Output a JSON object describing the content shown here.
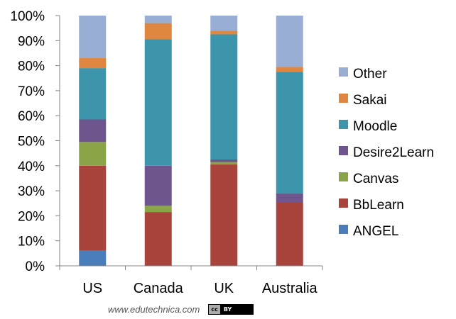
{
  "chart_data": {
    "type": "bar",
    "stacked": true,
    "categories": [
      "US",
      "Canada",
      "UK",
      "Australia"
    ],
    "series": [
      {
        "name": "ANGEL",
        "color": "#4a7ebb",
        "values": [
          6,
          0,
          0,
          0
        ]
      },
      {
        "name": "BbLearn",
        "color": "#a9443d",
        "values": [
          34,
          21.5,
          40.5,
          25.5
        ]
      },
      {
        "name": "Canvas",
        "color": "#8aa548",
        "values": [
          9.5,
          2.5,
          1,
          0
        ]
      },
      {
        "name": "Desire2Learn",
        "color": "#6e558e",
        "values": [
          9,
          16,
          1,
          3.5
        ]
      },
      {
        "name": "Moodle",
        "color": "#3c95ab",
        "values": [
          20.5,
          50.5,
          50,
          48.5
        ]
      },
      {
        "name": "Sakai",
        "color": "#df8640",
        "values": [
          4,
          6.5,
          1.5,
          2
        ]
      },
      {
        "name": "Other",
        "color": "#98aed5",
        "values": [
          17,
          3,
          6,
          20.5
        ]
      }
    ],
    "ylim": [
      0,
      100
    ],
    "yticks": [
      "0%",
      "10%",
      "20%",
      "30%",
      "40%",
      "50%",
      "60%",
      "70%",
      "80%",
      "90%",
      "100%"
    ],
    "legend_position": "right",
    "legend_order": [
      "Other",
      "Sakai",
      "Moodle",
      "Desire2Learn",
      "Canvas",
      "BbLearn",
      "ANGEL"
    ],
    "grid": false
  },
  "footer": {
    "source_text": "www.edutechnica.com",
    "license_left": "cc",
    "license_right": "BY"
  }
}
